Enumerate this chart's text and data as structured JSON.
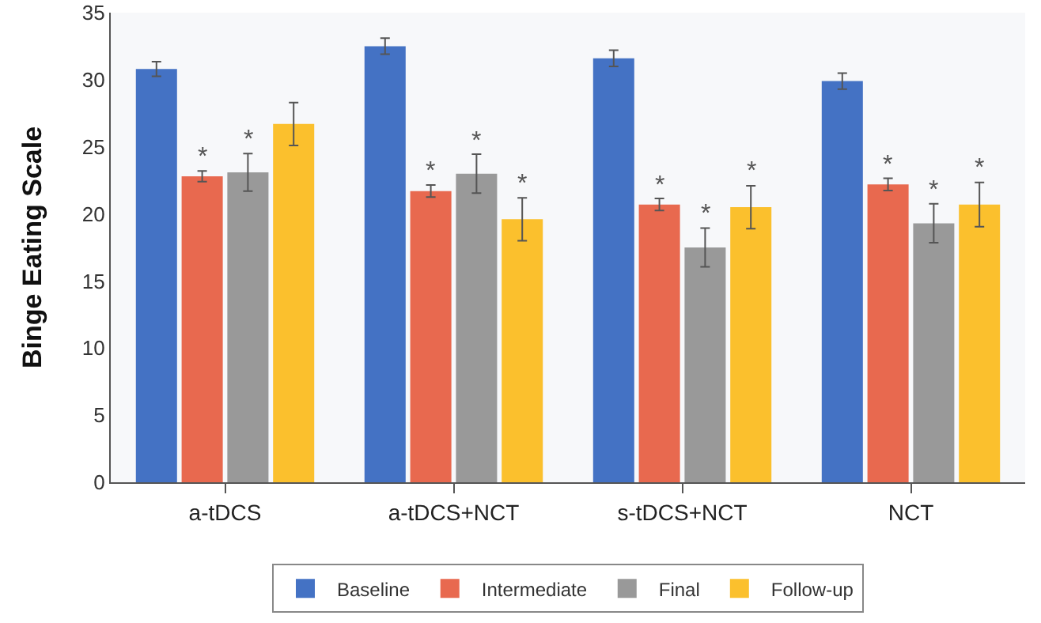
{
  "chart_data": {
    "type": "bar",
    "ylabel": "Binge Eating Scale",
    "categories": [
      "a-tDCS",
      "a-tDCS+NCT",
      "s-tDCS+NCT",
      "NCT"
    ],
    "series": [
      {
        "name": "Baseline",
        "color": "#4472c4",
        "values": [
          30.8,
          32.5,
          31.6,
          29.9
        ],
        "errors": [
          0.55,
          0.6,
          0.6,
          0.6
        ]
      },
      {
        "name": "Intermediate",
        "color": "#e8694f",
        "values": [
          22.8,
          21.7,
          20.7,
          22.2
        ],
        "errors": [
          0.4,
          0.45,
          0.45,
          0.45
        ],
        "value_labels": [
          "*",
          "*",
          "*",
          "*"
        ]
      },
      {
        "name": "Final",
        "color": "#999999",
        "values": [
          23.1,
          23.0,
          17.5,
          19.3
        ],
        "errors": [
          1.4,
          1.45,
          1.45,
          1.45
        ],
        "value_labels": [
          "*",
          "*",
          "*",
          "*"
        ]
      },
      {
        "name": "Follow-up",
        "color": "#fbc02d",
        "values": [
          26.7,
          19.6,
          20.5,
          20.7
        ],
        "errors": [
          1.6,
          1.6,
          1.6,
          1.65
        ],
        "value_labels": [
          null,
          "*",
          "*",
          "*"
        ]
      }
    ],
    "ylim": [
      0,
      35
    ],
    "yticks": [
      0,
      5,
      10,
      15,
      20,
      25,
      30,
      35
    ],
    "grid": false,
    "legend": "bottom"
  }
}
